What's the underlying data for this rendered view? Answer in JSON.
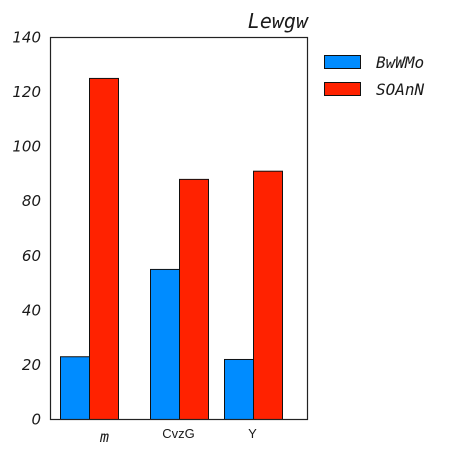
{
  "chart_data": {
    "type": "bar",
    "title": "Lewgw",
    "xlabel": "",
    "ylabel": "",
    "categories": [
      "m",
      "CvzG",
      "Y"
    ],
    "series": [
      {
        "name": "BwWMo",
        "color": "#008cff",
        "values": [
          23,
          55,
          22
        ]
      },
      {
        "name": "SOAnN",
        "color": "#ff2200",
        "values": [
          125,
          88,
          91
        ]
      }
    ],
    "ylim": [
      0,
      140
    ],
    "yticks": [
      0,
      20,
      40,
      60,
      80,
      100,
      120,
      140
    ],
    "grid": false,
    "legend_position": "outside-top-right"
  }
}
